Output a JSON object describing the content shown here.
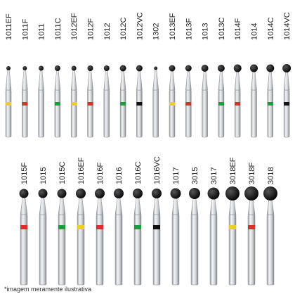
{
  "rows": [
    {
      "items": [
        {
          "code": "1011EF",
          "band": "#e8d21f"
        },
        {
          "code": "1011F",
          "band": "#d9302c"
        },
        {
          "code": "1011",
          "band": null
        },
        {
          "code": "1011C",
          "band": "#1f9a3c"
        },
        {
          "code": "1012EF",
          "band": "#e8d21f"
        },
        {
          "code": "1012F",
          "band": "#d9302c"
        },
        {
          "code": "1012",
          "band": null
        },
        {
          "code": "1012C",
          "band": "#1f9a3c"
        },
        {
          "code": "1012VC",
          "band": "#111111"
        },
        {
          "code": "1302",
          "band": null
        },
        {
          "code": "1013EF",
          "band": "#e8d21f"
        },
        {
          "code": "1013F",
          "band": "#d9302c"
        },
        {
          "code": "1013",
          "band": null
        },
        {
          "code": "1013C",
          "band": "#1f9a3c"
        },
        {
          "code": "1014F",
          "band": "#d9302c"
        },
        {
          "code": "1014",
          "band": null
        },
        {
          "code": "1014C",
          "band": "#1f9a3c"
        },
        {
          "code": "1014VC",
          "band": "#111111"
        }
      ]
    },
    {
      "items": [
        {
          "code": "1015F",
          "band": "#d9302c"
        },
        {
          "code": "1015",
          "band": null
        },
        {
          "code": "1015C",
          "band": "#1f9a3c"
        },
        {
          "code": "1016EF",
          "band": "#e8d21f"
        },
        {
          "code": "1016F",
          "band": "#d9302c"
        },
        {
          "code": "1016",
          "band": null
        },
        {
          "code": "1016C",
          "band": "#1f9a3c"
        },
        {
          "code": "1016VC",
          "band": "#111111"
        },
        {
          "code": "1017",
          "band": null
        },
        {
          "code": "3015",
          "band": null
        },
        {
          "code": "3017",
          "band": null
        },
        {
          "code": "3018EF",
          "band": "#e8d21f"
        },
        {
          "code": "3018F",
          "band": "#d9302c"
        },
        {
          "code": "3018",
          "band": null
        }
      ]
    }
  ],
  "footer": {
    "note": "*imagem meramente ilustrativa"
  }
}
